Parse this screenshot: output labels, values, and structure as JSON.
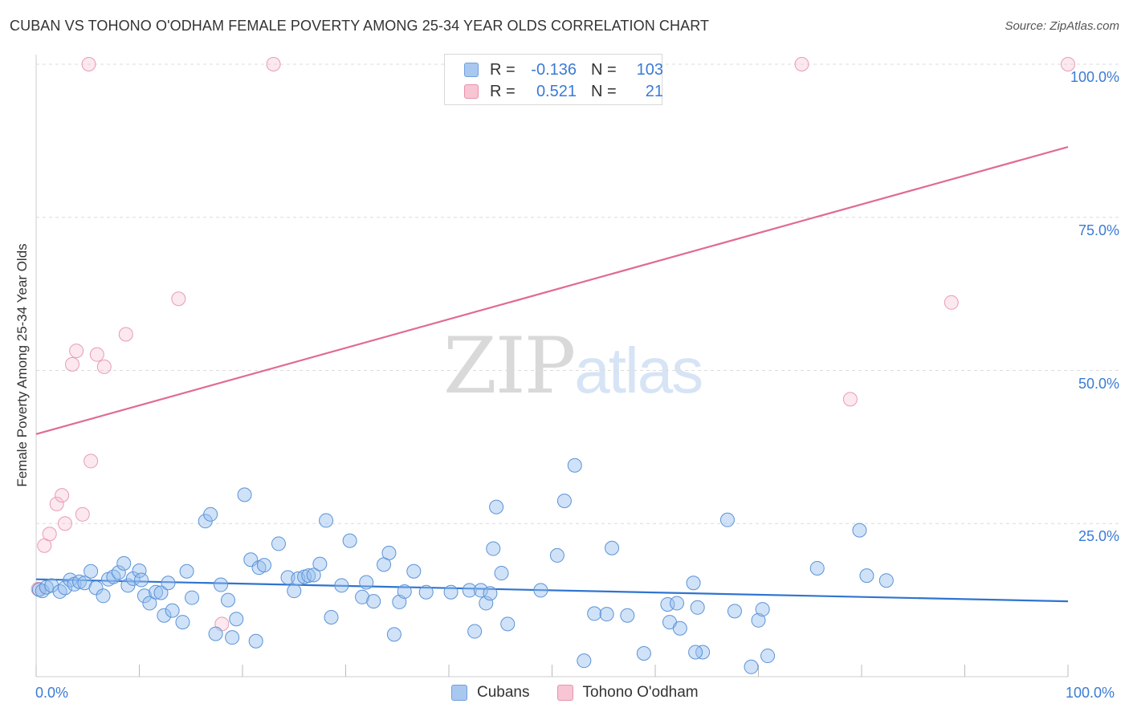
{
  "header": {
    "title": "CUBAN VS TOHONO O'ODHAM FEMALE POVERTY AMONG 25-34 YEAR OLDS CORRELATION CHART",
    "source": "Source: ZipAtlas.com"
  },
  "watermark": {
    "zip": "ZIP",
    "atlas": "atlas"
  },
  "legend_top": {
    "rows": [
      {
        "r_label": "R =",
        "r_value": "-0.136",
        "n_label": "N =",
        "n_value": "103",
        "color": "#a9c8f0",
        "border": "#6f9fdc"
      },
      {
        "r_label": "R =",
        "r_value": "0.521",
        "n_label": "N =",
        "n_value": "21",
        "color": "#f7c5d3",
        "border": "#e893ad"
      }
    ]
  },
  "legend_bottom": [
    {
      "label": "Cubans",
      "color": "#a9c8f0",
      "border": "#6f9fdc"
    },
    {
      "label": "Tohono O'odham",
      "color": "#f7c5d3",
      "border": "#e893ad"
    }
  ],
  "colors": {
    "cuban_fill": "rgba(150,190,240,0.45)",
    "cuban_stroke": "#5b93d6",
    "cuban_line": "#2f74d0",
    "tohono_fill": "rgba(247,190,208,0.35)",
    "tohono_stroke": "#ea9bb4",
    "tohono_line": "#e06b93",
    "tick_text": "#3a7bd5"
  },
  "chart_data": {
    "type": "scatter",
    "title": "CUBAN VS TOHONO O'ODHAM FEMALE POVERTY AMONG 25-34 YEAR OLDS CORRELATION CHART",
    "xlabel": "",
    "ylabel": "Female Poverty Among 25-34 Year Olds",
    "xlim": [
      0,
      100
    ],
    "ylim": [
      0,
      100
    ],
    "x_tick_labels": [
      "0.0%",
      "100.0%"
    ],
    "y_tick_labels": [
      "25.0%",
      "50.0%",
      "75.0%",
      "100.0%"
    ],
    "y_tick_values": [
      25,
      50,
      75,
      100
    ],
    "grid": true,
    "legend_placement": "top-center",
    "series": [
      {
        "name": "Cubans",
        "trend": {
          "x": [
            0,
            100
          ],
          "y": [
            15.9,
            12.3
          ]
        },
        "points": [
          [
            0.3,
            14.2
          ],
          [
            0.6,
            14.0
          ],
          [
            1.0,
            14.6
          ],
          [
            1.5,
            14.9
          ],
          [
            2.3,
            13.9
          ],
          [
            2.8,
            14.5
          ],
          [
            3.3,
            15.8
          ],
          [
            3.7,
            15.1
          ],
          [
            4.2,
            15.5
          ],
          [
            4.7,
            15.3
          ],
          [
            5.3,
            17.2
          ],
          [
            5.8,
            14.5
          ],
          [
            6.5,
            13.2
          ],
          [
            7.0,
            15.9
          ],
          [
            7.5,
            16.3
          ],
          [
            8.0,
            17.0
          ],
          [
            8.5,
            18.5
          ],
          [
            8.9,
            14.9
          ],
          [
            9.4,
            16.0
          ],
          [
            10.0,
            17.3
          ],
          [
            10.2,
            15.8
          ],
          [
            10.5,
            13.2
          ],
          [
            11.0,
            12.0
          ],
          [
            11.6,
            13.8
          ],
          [
            12.1,
            13.7
          ],
          [
            12.4,
            10.0
          ],
          [
            12.8,
            15.3
          ],
          [
            13.2,
            10.8
          ],
          [
            14.2,
            8.9
          ],
          [
            14.6,
            17.2
          ],
          [
            15.1,
            12.9
          ],
          [
            16.4,
            25.4
          ],
          [
            16.9,
            26.5
          ],
          [
            17.4,
            7.0
          ],
          [
            17.9,
            15.0
          ],
          [
            18.6,
            12.5
          ],
          [
            19.0,
            6.4
          ],
          [
            19.4,
            9.4
          ],
          [
            20.2,
            29.7
          ],
          [
            20.8,
            19.1
          ],
          [
            21.3,
            5.8
          ],
          [
            21.6,
            17.8
          ],
          [
            22.1,
            18.2
          ],
          [
            23.5,
            21.7
          ],
          [
            24.4,
            16.2
          ],
          [
            25.0,
            14.0
          ],
          [
            25.4,
            16.0
          ],
          [
            26.0,
            16.3
          ],
          [
            26.4,
            16.5
          ],
          [
            26.9,
            16.6
          ],
          [
            27.5,
            18.4
          ],
          [
            28.1,
            25.5
          ],
          [
            28.6,
            9.7
          ],
          [
            29.6,
            14.9
          ],
          [
            30.4,
            22.2
          ],
          [
            31.6,
            13.0
          ],
          [
            32.0,
            15.4
          ],
          [
            32.7,
            12.3
          ],
          [
            33.7,
            18.3
          ],
          [
            34.2,
            20.2
          ],
          [
            34.7,
            6.9
          ],
          [
            35.2,
            12.2
          ],
          [
            35.7,
            13.9
          ],
          [
            36.6,
            17.2
          ],
          [
            37.8,
            13.8
          ],
          [
            40.2,
            13.8
          ],
          [
            42.0,
            14.1
          ],
          [
            42.5,
            7.4
          ],
          [
            43.1,
            14.1
          ],
          [
            43.6,
            12.0
          ],
          [
            44.0,
            13.6
          ],
          [
            44.3,
            20.9
          ],
          [
            44.6,
            27.7
          ],
          [
            45.1,
            16.9
          ],
          [
            45.7,
            8.6
          ],
          [
            48.9,
            14.1
          ],
          [
            50.5,
            19.8
          ],
          [
            51.2,
            28.7
          ],
          [
            52.2,
            34.5
          ],
          [
            53.1,
            2.6
          ],
          [
            54.1,
            10.3
          ],
          [
            55.3,
            10.2
          ],
          [
            55.8,
            21.0
          ],
          [
            57.3,
            10.0
          ],
          [
            58.9,
            3.8
          ],
          [
            61.2,
            11.8
          ],
          [
            61.4,
            8.9
          ],
          [
            62.1,
            12.0
          ],
          [
            62.4,
            7.9
          ],
          [
            63.7,
            15.3
          ],
          [
            64.1,
            11.3
          ],
          [
            64.6,
            4.0
          ],
          [
            67.0,
            25.6
          ],
          [
            67.7,
            10.7
          ],
          [
            69.3,
            1.6
          ],
          [
            70.0,
            9.2
          ],
          [
            70.4,
            11.0
          ],
          [
            70.9,
            3.4
          ],
          [
            75.7,
            17.7
          ],
          [
            79.8,
            23.9
          ],
          [
            80.5,
            16.5
          ],
          [
            82.4,
            15.7
          ],
          [
            63.9,
            4.0
          ]
        ]
      },
      {
        "name": "Tohono O'odham",
        "trend": {
          "x": [
            0,
            100
          ],
          "y": [
            39.6,
            86.5
          ]
        },
        "points": [
          [
            0.2,
            14.3
          ],
          [
            0.8,
            21.4
          ],
          [
            1.3,
            23.3
          ],
          [
            2.0,
            28.2
          ],
          [
            2.5,
            29.6
          ],
          [
            2.8,
            25.0
          ],
          [
            3.5,
            51.0
          ],
          [
            3.9,
            53.2
          ],
          [
            4.5,
            26.5
          ],
          [
            5.1,
            100.0
          ],
          [
            5.3,
            35.2
          ],
          [
            5.9,
            52.6
          ],
          [
            6.6,
            50.6
          ],
          [
            8.7,
            55.9
          ],
          [
            13.8,
            61.7
          ],
          [
            18.0,
            8.6
          ],
          [
            23.0,
            100.0
          ],
          [
            74.2,
            100.0
          ],
          [
            78.9,
            45.3
          ],
          [
            88.7,
            61.1
          ],
          [
            100.0,
            100.0
          ]
        ]
      }
    ]
  }
}
